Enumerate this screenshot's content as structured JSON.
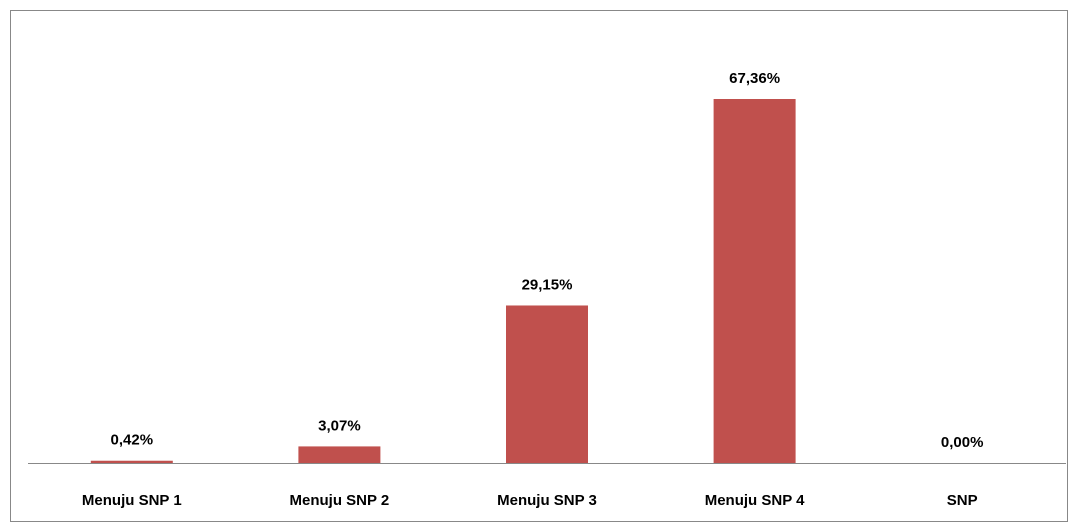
{
  "chart_data": {
    "type": "bar",
    "categories": [
      "Menuju SNP 1",
      "Menuju SNP 2",
      "Menuju SNP 3",
      "Menuju SNP 4",
      "SNP"
    ],
    "values": [
      0.42,
      3.07,
      29.15,
      67.36,
      0
    ],
    "value_labels": [
      "0,42%",
      "3,07%",
      "29,15%",
      "67,36%",
      "0,00%"
    ],
    "color": "#c0504d"
  }
}
